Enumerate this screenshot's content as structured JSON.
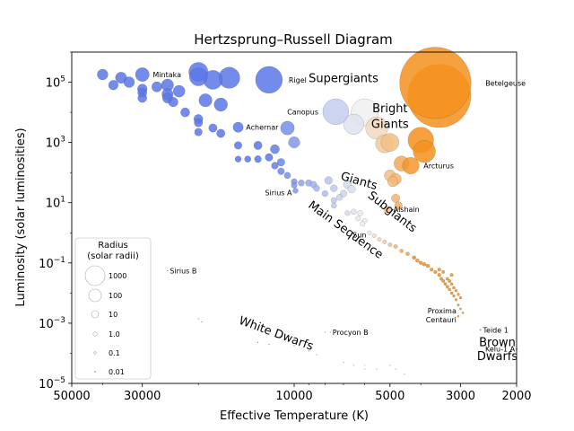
{
  "chart_data": {
    "type": "scatter",
    "title": "Hertzsprung–Russell Diagram",
    "xlabel": "Effective Temperature (K)",
    "ylabel": "Luminosity (solar luminosities)",
    "x_scale": "log",
    "x_reversed": true,
    "y_scale": "log",
    "xlim": [
      50000,
      2000
    ],
    "ylim": [
      1e-05,
      1000000
    ],
    "x_ticks": [
      {
        "value": 50000,
        "label": "50000"
      },
      {
        "value": 30000,
        "label": "30000"
      },
      {
        "value": 10000,
        "label": "10000"
      },
      {
        "value": 5000,
        "label": "5000"
      },
      {
        "value": 3000,
        "label": "3000"
      },
      {
        "value": 2000,
        "label": "2000"
      }
    ],
    "y_ticks": [
      {
        "value": 1e-05,
        "base": "10",
        "exp": "−5"
      },
      {
        "value": 0.001,
        "base": "10",
        "exp": "−3"
      },
      {
        "value": 0.1,
        "base": "10",
        "exp": "−1"
      },
      {
        "value": 10,
        "base": "10",
        "exp": "1"
      },
      {
        "value": 1000,
        "base": "10",
        "exp": "3"
      },
      {
        "value": 100000,
        "base": "10",
        "exp": "5"
      }
    ],
    "color_scale": {
      "hot": "#5a78e8",
      "mid": "#f0f0f0",
      "cool": "#f5901e"
    },
    "legend": {
      "placement": "lower-left",
      "title_line1": "Radius",
      "title_line2": "(solar radii)",
      "entries": [
        {
          "radius": 1000,
          "label": "1000"
        },
        {
          "radius": 100,
          "label": "100"
        },
        {
          "radius": 10,
          "label": "10"
        },
        {
          "radius": 1,
          "label": "1.0"
        },
        {
          "radius": 0.1,
          "label": "0.1"
        },
        {
          "radius": 0.01,
          "label": "0.01"
        }
      ]
    },
    "regions": [
      {
        "label": "Supergiants",
        "temp": 7000,
        "lum": 100000,
        "rotate": 0
      },
      {
        "label": "Bright",
        "temp": 5000,
        "lum": 10000,
        "rotate": 0
      },
      {
        "label": "Giants",
        "temp": 5000,
        "lum": 3000,
        "rotate": 0
      },
      {
        "label": "Giants",
        "temp": 6300,
        "lum": 40,
        "rotate": 16
      },
      {
        "label": "Subgiants",
        "temp": 5000,
        "lum": 4,
        "rotate": 38
      },
      {
        "label": "Main Sequence",
        "temp": 7000,
        "lum": 1,
        "rotate": 36
      },
      {
        "label": "White Dwarfs",
        "temp": 11500,
        "lum": 0.00035,
        "rotate": 20
      },
      {
        "label": "Brown",
        "temp": 2300,
        "lum": 0.00017,
        "rotate": 0
      },
      {
        "label": "Dwarfs",
        "temp": 2300,
        "lum": 6e-05,
        "rotate": 0
      }
    ],
    "labeled_stars": [
      {
        "name": "Mintaka",
        "temp": 30000,
        "lum": 180000,
        "radius": 16
      },
      {
        "name": "Rigel",
        "temp": 12000,
        "lum": 120000,
        "radius": 79
      },
      {
        "name": "Betelgeuse",
        "temp": 3600,
        "lum": 95000,
        "radius": 800
      },
      {
        "name": "Canopus",
        "temp": 7400,
        "lum": 10500,
        "radius": 71
      },
      {
        "name": "Achernar",
        "temp": 15000,
        "lum": 3200,
        "radius": 8
      },
      {
        "name": "Arcturus",
        "temp": 4300,
        "lum": 170,
        "radius": 25
      },
      {
        "name": "Sirius A",
        "temp": 9900,
        "lum": 25,
        "radius": 1.7
      },
      {
        "name": "Alshain",
        "temp": 5100,
        "lum": 6,
        "radius": 3
      },
      {
        "name": "Sun",
        "temp": 5800,
        "lum": 1,
        "radius": 1
      },
      {
        "name": "Sirius B",
        "temp": 25000,
        "lum": 0.056,
        "radius": 0.008
      },
      {
        "name": "Proxima Centauri",
        "name_line1": "Proxima",
        "name_line2": "Centauri",
        "temp": 3050,
        "lum": 0.0017,
        "radius": 0.15
      },
      {
        "name": "Teide 1",
        "temp": 2600,
        "lum": 0.0006,
        "radius": 0.1
      },
      {
        "name": "Kelu-1 A",
        "temp": 2000,
        "lum": 0.00014,
        "radius": 0.1
      },
      {
        "name": "Procyon B",
        "temp": 7700,
        "lum": 0.0005,
        "radius": 0.012
      }
    ],
    "stars": [
      {
        "temp": 40000,
        "lum": 180000,
        "radius": 9
      },
      {
        "temp": 37000,
        "lum": 80000,
        "radius": 7
      },
      {
        "temp": 35000,
        "lum": 140000,
        "radius": 10
      },
      {
        "temp": 33000,
        "lum": 100000,
        "radius": 9
      },
      {
        "temp": 30000,
        "lum": 60000,
        "radius": 7
      },
      {
        "temp": 30000,
        "lum": 45000,
        "radius": 6
      },
      {
        "temp": 30000,
        "lum": 30000,
        "radius": 6
      },
      {
        "temp": 27000,
        "lum": 70000,
        "radius": 8
      },
      {
        "temp": 25000,
        "lum": 80000,
        "radius": 12
      },
      {
        "temp": 25000,
        "lum": 40000,
        "radius": 10
      },
      {
        "temp": 25000,
        "lum": 30000,
        "radius": 8
      },
      {
        "temp": 24000,
        "lum": 22000,
        "radius": 7
      },
      {
        "temp": 23000,
        "lum": 50000,
        "radius": 11
      },
      {
        "temp": 22000,
        "lum": 10000,
        "radius": 6
      },
      {
        "temp": 20000,
        "lum": 220000,
        "radius": 35
      },
      {
        "temp": 20000,
        "lum": 150000,
        "radius": 30
      },
      {
        "temp": 20000,
        "lum": 6000,
        "radius": 6
      },
      {
        "temp": 20000,
        "lum": 4500,
        "radius": 5
      },
      {
        "temp": 20000,
        "lum": 2200,
        "radius": 4
      },
      {
        "temp": 19000,
        "lum": 25000,
        "radius": 14
      },
      {
        "temp": 18000,
        "lum": 120000,
        "radius": 34
      },
      {
        "temp": 18000,
        "lum": 3000,
        "radius": 5
      },
      {
        "temp": 17000,
        "lum": 18000,
        "radius": 15
      },
      {
        "temp": 17000,
        "lum": 2000,
        "radius": 5
      },
      {
        "temp": 16000,
        "lum": 140000,
        "radius": 44
      },
      {
        "temp": 15000,
        "lum": 800,
        "radius": 4
      },
      {
        "temp": 15000,
        "lum": 280,
        "radius": 2.5
      },
      {
        "temp": 14000,
        "lum": 280,
        "radius": 2.7
      },
      {
        "temp": 13000,
        "lum": 800,
        "radius": 5
      },
      {
        "temp": 13000,
        "lum": 280,
        "radius": 3.2
      },
      {
        "temp": 12000,
        "lum": 320,
        "radius": 4
      },
      {
        "temp": 11500,
        "lum": 600,
        "radius": 6
      },
      {
        "temp": 11500,
        "lum": 170,
        "radius": 3.2
      },
      {
        "temp": 11000,
        "lum": 220,
        "radius": 4
      },
      {
        "temp": 11000,
        "lum": 110,
        "radius": 2.9
      },
      {
        "temp": 10500,
        "lum": 3000,
        "radius": 16
      },
      {
        "temp": 10500,
        "lum": 80,
        "radius": 2.7
      },
      {
        "temp": 10000,
        "lum": 1000,
        "radius": 10
      },
      {
        "temp": 10000,
        "lum": 50,
        "radius": 2.3
      },
      {
        "temp": 10000,
        "lum": 38,
        "radius": 2.1
      },
      {
        "temp": 9500,
        "lum": 45,
        "radius": 2.5
      },
      {
        "temp": 9000,
        "lum": 45,
        "radius": 2.8
      },
      {
        "temp": 8700,
        "lum": 40,
        "radius": 2.8
      },
      {
        "temp": 8500,
        "lum": 30,
        "radius": 2.5
      },
      {
        "temp": 8000,
        "lum": 20,
        "radius": 2.3
      },
      {
        "temp": 7800,
        "lum": 55,
        "radius": 4
      },
      {
        "temp": 7500,
        "lum": 30,
        "radius": 3.2
      },
      {
        "temp": 7500,
        "lum": 12,
        "radius": 2
      },
      {
        "temp": 7500,
        "lum": 8,
        "radius": 1.7
      },
      {
        "temp": 7200,
        "lum": 15,
        "radius": 2.5
      },
      {
        "temp": 7000,
        "lum": 20,
        "radius": 3
      },
      {
        "temp": 6800,
        "lum": 40,
        "radius": 4.5
      },
      {
        "temp": 6800,
        "lum": 4.5,
        "radius": 1.5
      },
      {
        "temp": 6600,
        "lum": 28,
        "radius": 4
      },
      {
        "temp": 6500,
        "lum": 5,
        "radius": 1.8
      },
      {
        "temp": 6300,
        "lum": 3,
        "radius": 1.5
      },
      {
        "temp": 6200,
        "lum": 4.5,
        "radius": 1.8
      },
      {
        "temp": 6100,
        "lum": 2,
        "radius": 1.3
      },
      {
        "temp": 6000,
        "lum": 2.5,
        "radius": 1.5
      },
      {
        "temp": 6500,
        "lum": 4000,
        "radius": 40
      },
      {
        "temp": 6000,
        "lum": 10000,
        "radius": 80
      },
      {
        "temp": 5500,
        "lum": 3000,
        "radius": 50
      },
      {
        "temp": 5200,
        "lum": 900,
        "radius": 30
      },
      {
        "temp": 5000,
        "lum": 1000,
        "radius": 30
      },
      {
        "temp": 5000,
        "lum": 80,
        "radius": 10
      },
      {
        "temp": 4900,
        "lum": 50,
        "radius": 8
      },
      {
        "temp": 4800,
        "lum": 60,
        "radius": 10
      },
      {
        "temp": 4800,
        "lum": 14,
        "radius": 5
      },
      {
        "temp": 4700,
        "lum": 8,
        "radius": 4
      },
      {
        "temp": 4600,
        "lum": 200,
        "radius": 20
      },
      {
        "temp": 4000,
        "lum": 1200,
        "radius": 70
      },
      {
        "temp": 3900,
        "lum": 500,
        "radius": 50
      },
      {
        "temp": 3500,
        "lum": 35000,
        "radius": 600
      },
      {
        "temp": 5600,
        "lum": 0.8,
        "radius": 0.9
      },
      {
        "temp": 5400,
        "lum": 0.6,
        "radius": 0.85
      },
      {
        "temp": 5200,
        "lum": 0.5,
        "radius": 0.8
      },
      {
        "temp": 5000,
        "lum": 0.4,
        "radius": 0.8
      },
      {
        "temp": 4800,
        "lum": 0.35,
        "radius": 0.8
      },
      {
        "temp": 4600,
        "lum": 0.25,
        "radius": 0.75
      },
      {
        "temp": 4400,
        "lum": 0.2,
        "radius": 0.75
      },
      {
        "temp": 4200,
        "lum": 0.15,
        "radius": 0.7
      },
      {
        "temp": 4100,
        "lum": 0.12,
        "radius": 0.7
      },
      {
        "temp": 4000,
        "lum": 0.1,
        "radius": 0.65
      },
      {
        "temp": 3900,
        "lum": 0.09,
        "radius": 0.65
      },
      {
        "temp": 3800,
        "lum": 0.08,
        "radius": 0.65
      },
      {
        "temp": 3700,
        "lum": 0.06,
        "radius": 0.6
      },
      {
        "temp": 3600,
        "lum": 0.05,
        "radius": 0.6
      },
      {
        "temp": 3500,
        "lum": 0.04,
        "radius": 0.55
      },
      {
        "temp": 3450,
        "lum": 0.03,
        "radius": 0.5
      },
      {
        "temp": 3400,
        "lum": 0.025,
        "radius": 0.5
      },
      {
        "temp": 3350,
        "lum": 0.02,
        "radius": 0.45
      },
      {
        "temp": 3300,
        "lum": 0.016,
        "radius": 0.45
      },
      {
        "temp": 3250,
        "lum": 0.013,
        "radius": 0.4
      },
      {
        "temp": 3200,
        "lum": 0.01,
        "radius": 0.4
      },
      {
        "temp": 3150,
        "lum": 0.008,
        "radius": 0.35
      },
      {
        "temp": 3100,
        "lum": 0.006,
        "radius": 0.3
      },
      {
        "temp": 3050,
        "lum": 0.004,
        "radius": 0.25
      },
      {
        "temp": 3000,
        "lum": 0.003,
        "radius": 0.2
      },
      {
        "temp": 2950,
        "lum": 0.0022,
        "radius": 0.18
      },
      {
        "temp": 3300,
        "lum": 0.03,
        "radius": 0.45
      },
      {
        "temp": 3250,
        "lum": 0.025,
        "radius": 0.45
      },
      {
        "temp": 3200,
        "lum": 0.02,
        "radius": 0.4
      },
      {
        "temp": 3150,
        "lum": 0.015,
        "radius": 0.4
      },
      {
        "temp": 3100,
        "lum": 0.012,
        "radius": 0.35
      },
      {
        "temp": 3050,
        "lum": 0.009,
        "radius": 0.35
      },
      {
        "temp": 3000,
        "lum": 0.007,
        "radius": 0.3
      },
      {
        "temp": 3400,
        "lum": 0.05,
        "radius": 0.5
      },
      {
        "temp": 3500,
        "lum": 0.06,
        "radius": 0.55
      },
      {
        "temp": 3200,
        "lum": 0.04,
        "radius": 0.5
      },
      {
        "temp": 20000,
        "lum": 0.0014,
        "radius": 0.012
      },
      {
        "temp": 19500,
        "lum": 0.0011,
        "radius": 0.011
      },
      {
        "temp": 13000,
        "lum": 0.00023,
        "radius": 0.01
      },
      {
        "temp": 12000,
        "lum": 0.0002,
        "radius": 0.01
      },
      {
        "temp": 10000,
        "lum": 0.00018,
        "radius": 0.01
      },
      {
        "temp": 9000,
        "lum": 0.00012,
        "radius": 0.009
      },
      {
        "temp": 8500,
        "lum": 9e-05,
        "radius": 0.009
      },
      {
        "temp": 8000,
        "lum": 0.0005,
        "radius": 0.012
      },
      {
        "temp": 7500,
        "lum": 0.0006,
        "radius": 0.013
      },
      {
        "temp": 7000,
        "lum": 5e-05,
        "radius": 0.009
      },
      {
        "temp": 6500,
        "lum": 4e-05,
        "radius": 0.009
      },
      {
        "temp": 6000,
        "lum": 3e-05,
        "radius": 0.009
      },
      {
        "temp": 5500,
        "lum": 3e-05,
        "radius": 0.009
      },
      {
        "temp": 5000,
        "lum": 4e-05,
        "radius": 0.009
      },
      {
        "temp": 4800,
        "lum": 3e-05,
        "radius": 0.009
      },
      {
        "temp": 4500,
        "lum": 2e-05,
        "radius": 0.008
      },
      {
        "temp": 6000,
        "lum": 4e-05,
        "radius": 0.009
      }
    ]
  }
}
